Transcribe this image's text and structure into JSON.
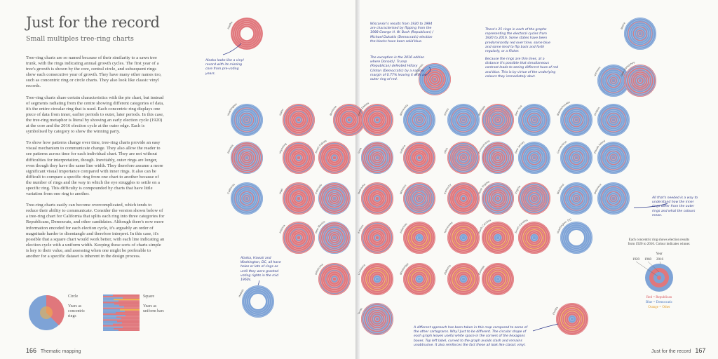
{
  "left": {
    "title": "Just for the record",
    "subtitle": "Small multiples tree-ring charts",
    "paragraphs": [
      "Tree-ring charts are so named because of their similarity to a sawn tree trunk, with the rings indicating annual growth cycles. The first year of a tree's growth is shown by the core, central circle, and subsequent rings show each consecutive year of growth. They have many other names too, such as concentric ring or circle charts. They also look like classic vinyl records.",
      "Tree-ring charts share certain characteristics with the pie chart, but instead of segments radiating from the centre showing different categories of data, it's the entire circular ring that is used. Each concentric ring displays one piece of data from inner, earlier periods to outer, later periods. In this case, the tree-ring metaphor is literal by showing an early election cycle (1920) at the core and the 2016 election cycle at the outer edge. Each is symbolised by category to show the winning party.",
      "To show how patterns change over time, tree-ring charts provide an easy visual mechanism to communicate change. They also allow the reader to see patterns across time for each individual chart. They are not without difficulties for interpretation, though. Inevitably, outer rings are longer, even though they have the same line width. They therefore assume a more significant visual importance compared with inner rings. It also can be difficult to compare a specific ring from one chart to another because of the number of rings and the way in which the eye struggles to settle on a specific ring. This difficulty is compounded by charts that have little variation from one ring to another.",
      "Tree-ring charts easily can become overcomplicated, which tends to reduce their ability to communicate. Consider the version shown below of a tree-ring chart for California that splits each ring into three categories for Republicans, Democrats, and other candidates. Although there's now more information encoded for each election cycle, it's arguably an order of magnitude harder to disentangle and therefore interpret. In this case, it's possible that a square chart would work better, with each line indicating an election cycle with a uniform width. Keeping these sorts of charts simple is key to their value, and assessing when one might be preferable to another for a specific dataset is inherent in the design process."
    ],
    "legend_circle_title": "Circle",
    "legend_circle_desc": "Years as concentric rings",
    "legend_square_title": "Square",
    "legend_square_desc": "Years as uniform bars",
    "page_number": "166",
    "section": "Thematic mapping"
  },
  "right": {
    "page_number": "167",
    "section": "Just for the record",
    "notes": {
      "alaska": "Alaska looks like a vinyl record with its missing core from pre-voting years.",
      "wisconsin": "Wisconsin's results from 1920 to 1984 are characterised by flipping from the 1988 George H. W. Bush (Republican) / Michael Dukakis (Democratic) election the blocks have been solid blue.",
      "exception": "The exception is the 2016 edition where Donald J. Trump (Republican) defeated Hillary Clinton (Democratic) by a narrow margin of 0.77% leaving it with an outer ring of red.",
      "rings": "There's 25 rings in each of the graphs representing the electoral cycles from 1920 to 2016. Some states have been predominantly red over time, some blue and some tend to flip back and forth regularly, or a flicker.",
      "lines": "Because the rings are thin lines, at a distance it's possible that simultaneous contrast leads to seeing different hues of red and blue. This is by virtue of the underlying colours they immediately abut.",
      "dc": "Alaska, Hawaii and Washington, DC, all have holes or lots of rings as until they were granted voting rights in the mid 1960s.",
      "approach": "A different approach has been taken in this map compared to some of the other cartograms. Why? Just to be different. The circular shape of each graph leaves useful white space in the corners of the hexagons boxes. Top left label, curved to the graph avoids clash and remains unobtrusive. It also reinforces the fact these all look like classic vinyl.",
      "outer": "All that's needed is a way to understand how the inner rings differ from the outer rings and what the colours mean."
    },
    "key": {
      "caption": "Each concentric ring shows election results from 1920 to 2016. Colour indicates winner.",
      "year_label": "Year",
      "years": [
        "1920",
        "1960",
        "2016"
      ],
      "rep": "Red = Republican",
      "dem": "Blue = Democratic",
      "oth": "Orange = Other"
    }
  },
  "colors": {
    "rep": "#e0777c",
    "dem": "#7ea3d6",
    "oth": "#f0b14a",
    "ink": "#2e3a8c"
  },
  "states": [
    {
      "n": "Alaska",
      "p": "alaska"
    },
    {
      "n": "Maine",
      "p": "dem"
    },
    {
      "n": "Wisconsin",
      "p": "wisc"
    },
    {
      "n": "Vermont",
      "p": "dem"
    },
    {
      "n": "New Hampshire",
      "p": "mix"
    },
    {
      "n": "Washington",
      "p": "dem"
    },
    {
      "n": "Idaho",
      "p": "rep"
    },
    {
      "n": "Montana",
      "p": "rep"
    },
    {
      "n": "North Dakota",
      "p": "rep"
    },
    {
      "n": "Minnesota",
      "p": "dem"
    },
    {
      "n": "Illinois",
      "p": "dem"
    },
    {
      "n": "Michigan",
      "p": "mix"
    },
    {
      "n": "New York",
      "p": "dem"
    },
    {
      "n": "Massachusetts",
      "p": "dem"
    },
    {
      "n": "Oregon",
      "p": "dem"
    },
    {
      "n": "Nevada",
      "p": "mix"
    },
    {
      "n": "Wyoming",
      "p": "rep"
    },
    {
      "n": "South Dakota",
      "p": "rep"
    },
    {
      "n": "Iowa",
      "p": "mix"
    },
    {
      "n": "Indiana",
      "p": "rep"
    },
    {
      "n": "Ohio",
      "p": "mix"
    },
    {
      "n": "Pennsylvania",
      "p": "mix"
    },
    {
      "n": "New Jersey",
      "p": "dem"
    },
    {
      "n": "Connecticut",
      "p": "dem"
    },
    {
      "n": "Rhode Island",
      "p": "dem"
    },
    {
      "n": "California",
      "p": "dem"
    },
    {
      "n": "Utah",
      "p": "rep"
    },
    {
      "n": "Colorado",
      "p": "mix"
    },
    {
      "n": "Nebraska",
      "p": "rep"
    },
    {
      "n": "Missouri",
      "p": "mix"
    },
    {
      "n": "Kentucky",
      "p": "rep"
    },
    {
      "n": "West Virginia",
      "p": "mix"
    },
    {
      "n": "Virginia",
      "p": "mix"
    },
    {
      "n": "Maryland",
      "p": "dem"
    },
    {
      "n": "Delaware",
      "p": "dem"
    },
    {
      "n": "Arizona",
      "p": "rep"
    },
    {
      "n": "New Mexico",
      "p": "mix"
    },
    {
      "n": "Kansas",
      "p": "rep"
    },
    {
      "n": "Arkansas",
      "p": "oth"
    },
    {
      "n": "Tennessee",
      "p": "oth"
    },
    {
      "n": "North Carolina",
      "p": "oth"
    },
    {
      "n": "South Carolina",
      "p": "oth"
    },
    {
      "n": "Washington, DC",
      "p": "dc"
    },
    {
      "n": "Oklahoma",
      "p": "rep"
    },
    {
      "n": "Louisiana",
      "p": "oth"
    },
    {
      "n": "Mississippi",
      "p": "oth"
    },
    {
      "n": "Alabama",
      "p": "oth"
    },
    {
      "n": "Georgia",
      "p": "oth"
    },
    {
      "n": "Hawaii",
      "p": "dc"
    },
    {
      "n": "Texas",
      "p": "mix"
    },
    {
      "n": "Florida",
      "p": "oth"
    }
  ]
}
